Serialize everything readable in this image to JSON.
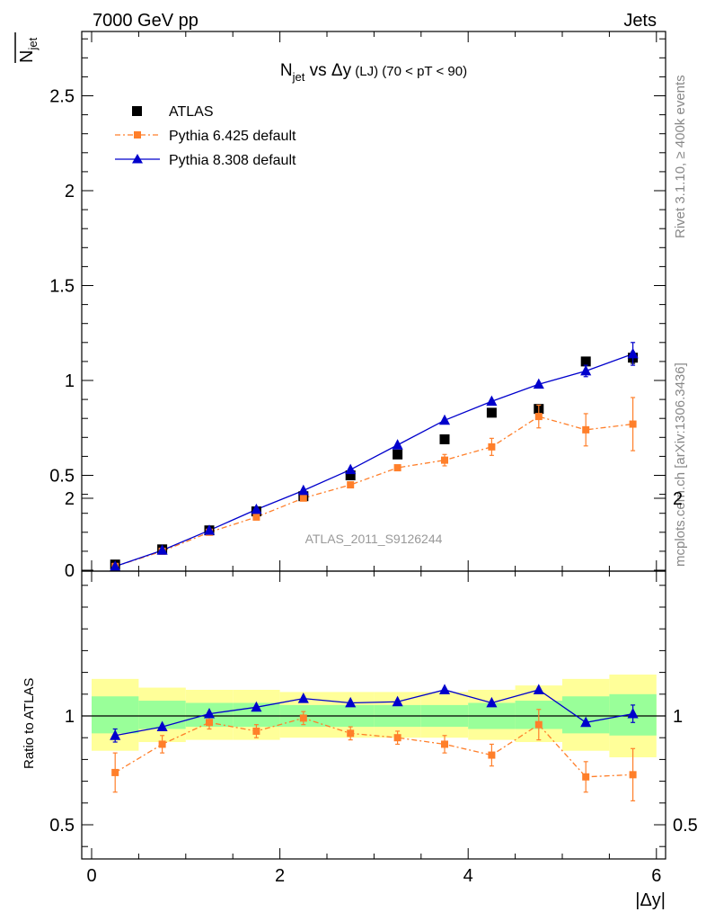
{
  "header": {
    "left": "7000 GeV pp",
    "right": "Jets"
  },
  "side_labels": {
    "rivet": "Rivet 3.1.10, ≥ 400k events",
    "mcplots": "mcplots.cern.ch [arXiv:1306.3436]"
  },
  "chart_data": [
    {
      "type": "scatter",
      "title_main": "N",
      "title_sub": "jet",
      "title_rest": " vs Δy",
      "title_small": " (LJ)",
      "title_range": " (70 < pT <  90)",
      "ylabel_main": "N",
      "ylabel_sub": "jet",
      "watermark": "ATLAS_2011_S9126244",
      "xlim": [
        0,
        6.1
      ],
      "ylim": [
        0,
        2.85
      ],
      "yticks": [
        0,
        0.5,
        1,
        1.5,
        2,
        2.5
      ],
      "ytick_labels": [
        "0",
        "0.5",
        "1",
        "1.5",
        "2",
        "2.5"
      ],
      "legend_position": "top-left",
      "x": [
        0.25,
        0.75,
        1.25,
        1.75,
        2.25,
        2.75,
        3.25,
        3.75,
        4.25,
        4.75,
        5.25,
        5.75
      ],
      "series": [
        {
          "name": "ATLAS",
          "color": "#000000",
          "values": [
            0.03,
            0.11,
            0.21,
            0.31,
            0.39,
            0.5,
            0.61,
            0.69,
            0.83,
            0.85,
            1.1,
            1.12
          ],
          "errors": [
            0.005,
            0.005,
            0.005,
            0.008,
            0.01,
            0.01,
            0.015,
            0.015,
            0.015,
            0.02,
            0.015,
            0.03
          ]
        },
        {
          "name": "Pythia 6.425 default",
          "color": "#ff7f2a",
          "values": [
            0.02,
            0.1,
            0.2,
            0.28,
            0.38,
            0.45,
            0.54,
            0.58,
            0.65,
            0.81,
            0.74,
            0.77
          ],
          "errors": [
            0.004,
            0.008,
            0.01,
            0.015,
            0.015,
            0.015,
            0.02,
            0.03,
            0.045,
            0.06,
            0.085,
            0.14
          ]
        },
        {
          "name": "Pythia 8.308 default",
          "color": "#0000cc",
          "values": [
            0.02,
            0.105,
            0.21,
            0.32,
            0.42,
            0.53,
            0.66,
            0.79,
            0.89,
            0.98,
            1.05,
            1.14
          ],
          "errors": [
            0.003,
            0.005,
            0.007,
            0.01,
            0.01,
            0.015,
            0.015,
            0.015,
            0.015,
            0.02,
            0.03,
            0.06
          ]
        }
      ]
    },
    {
      "type": "scatter",
      "ylabel": "Ratio to ATLAS",
      "xlabel": "|Δy|",
      "xlim": [
        0,
        6.1
      ],
      "ylim": [
        0.35,
        2.3
      ],
      "xticks": [
        0,
        2,
        4,
        6
      ],
      "xtick_labels": [
        "0",
        "2",
        "4",
        "6"
      ],
      "yticks": [
        0.5,
        1,
        2
      ],
      "ytick_labels": [
        "0.5",
        "1",
        "2"
      ],
      "reference_line": 1,
      "bands": [
        {
          "x0": 0.0,
          "x1": 0.5,
          "outer": [
            0.84,
            1.17
          ],
          "inner": [
            0.92,
            1.09
          ]
        },
        {
          "x0": 0.5,
          "x1": 1.0,
          "outer": [
            0.88,
            1.13
          ],
          "inner": [
            0.94,
            1.07
          ]
        },
        {
          "x0": 1.0,
          "x1": 1.5,
          "outer": [
            0.89,
            1.12
          ],
          "inner": [
            0.95,
            1.06
          ]
        },
        {
          "x0": 1.5,
          "x1": 2.0,
          "outer": [
            0.89,
            1.12
          ],
          "inner": [
            0.95,
            1.06
          ]
        },
        {
          "x0": 2.0,
          "x1": 2.5,
          "outer": [
            0.9,
            1.11
          ],
          "inner": [
            0.95,
            1.05
          ]
        },
        {
          "x0": 2.5,
          "x1": 3.0,
          "outer": [
            0.9,
            1.11
          ],
          "inner": [
            0.95,
            1.05
          ]
        },
        {
          "x0": 3.0,
          "x1": 3.5,
          "outer": [
            0.9,
            1.11
          ],
          "inner": [
            0.95,
            1.05
          ]
        },
        {
          "x0": 3.5,
          "x1": 4.0,
          "outer": [
            0.9,
            1.11
          ],
          "inner": [
            0.95,
            1.05
          ]
        },
        {
          "x0": 4.0,
          "x1": 4.5,
          "outer": [
            0.89,
            1.12
          ],
          "inner": [
            0.94,
            1.06
          ]
        },
        {
          "x0": 4.5,
          "x1": 5.0,
          "outer": [
            0.88,
            1.14
          ],
          "inner": [
            0.94,
            1.07
          ]
        },
        {
          "x0": 5.0,
          "x1": 5.5,
          "outer": [
            0.84,
            1.17
          ],
          "inner": [
            0.92,
            1.09
          ]
        },
        {
          "x0": 5.5,
          "x1": 6.0,
          "outer": [
            0.81,
            1.19
          ],
          "inner": [
            0.91,
            1.1
          ]
        }
      ],
      "series": [
        {
          "name": "Pythia 6.425 default",
          "color": "#ff7f2a",
          "values": [
            0.74,
            0.87,
            0.97,
            0.93,
            0.99,
            0.92,
            0.9,
            0.87,
            0.82,
            0.96,
            0.72,
            0.73
          ],
          "errors": [
            0.09,
            0.04,
            0.03,
            0.03,
            0.03,
            0.03,
            0.03,
            0.04,
            0.05,
            0.07,
            0.07,
            0.12
          ]
        },
        {
          "name": "Pythia 8.308 default",
          "color": "#0000cc",
          "values": [
            0.91,
            0.95,
            1.01,
            1.04,
            1.08,
            1.06,
            1.065,
            1.12,
            1.06,
            1.12,
            0.97,
            1.01
          ],
          "errors": [
            0.03,
            0.01,
            0.01,
            0.01,
            0.01,
            0.01,
            0.01,
            0.01,
            0.01,
            0.01,
            0.02,
            0.04
          ]
        }
      ]
    }
  ]
}
